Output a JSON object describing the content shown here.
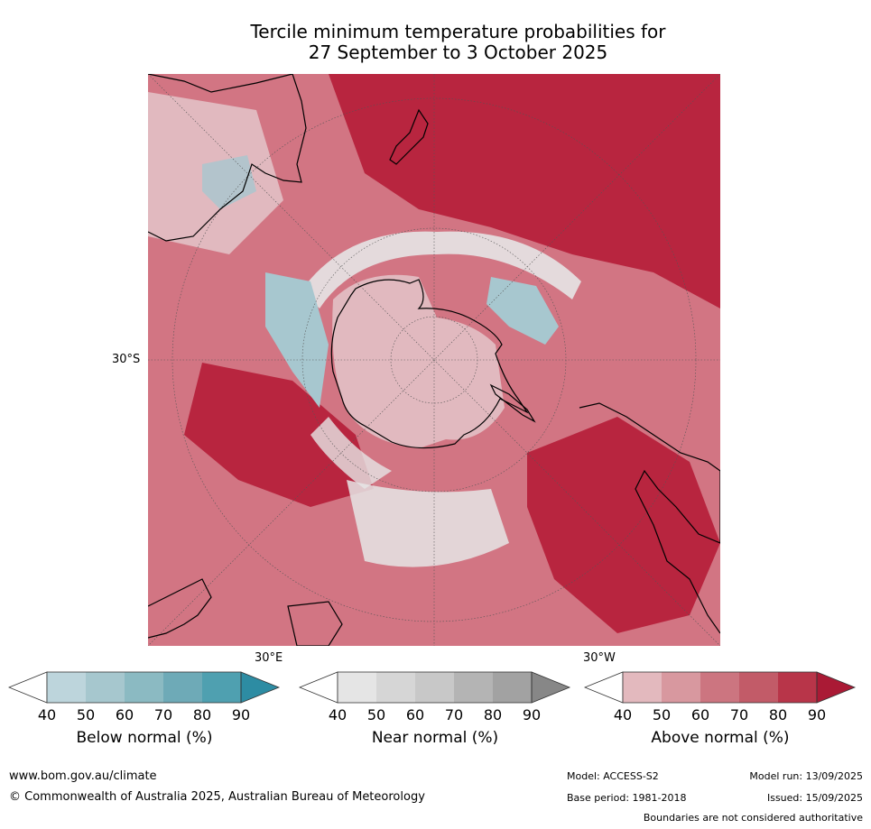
{
  "title": {
    "line1": "Tercile minimum temperature probabilities for",
    "line2": "27 September to 3 October 2025"
  },
  "map": {
    "projection": "south polar stereographic",
    "labels": {
      "lat_30s": "30°S",
      "lon_30e": "30°E",
      "lon_30w": "30°W"
    },
    "colors": {
      "ocean_high": "#b8253f",
      "ocean_mid": "#d27583",
      "ocean_low": "#e1b9bf",
      "near_normal": "#e6e6e6",
      "below_normal": "#a7c7cf",
      "coast": "#000000"
    }
  },
  "colorbars": [
    {
      "name": "below",
      "label": "Below normal (%)",
      "ticks": [
        "40",
        "50",
        "60",
        "70",
        "80",
        "90"
      ],
      "colors": [
        "#bdd5dc",
        "#a6c7ce",
        "#8bbac2",
        "#6eaab7",
        "#4fa0b0",
        "#2d8ca3"
      ]
    },
    {
      "name": "near",
      "label": "Near normal (%)",
      "ticks": [
        "40",
        "50",
        "60",
        "70",
        "80",
        "90"
      ],
      "colors": [
        "#e5e5e5",
        "#d6d6d6",
        "#c8c8c8",
        "#b4b4b4",
        "#a2a2a2",
        "#878787"
      ]
    },
    {
      "name": "above",
      "label": "Above normal (%)",
      "ticks": [
        "40",
        "50",
        "60",
        "70",
        "80",
        "90"
      ],
      "colors": [
        "#e3b9be",
        "#d8989f",
        "#cc7580",
        "#c25b68",
        "#b83549",
        "#aa1a35"
      ]
    }
  ],
  "footer": {
    "url": "www.bom.gov.au/climate",
    "copyright": "© Commonwealth of Australia 2025, Australian Bureau of Meteorology",
    "model": "Model: ACCESS-S2",
    "base_period": "Base period: 1981-2018",
    "model_run": "Model run: 13/09/2025",
    "issued": "Issued: 15/09/2025",
    "boundaries": "Boundaries are not considered authoritative"
  }
}
